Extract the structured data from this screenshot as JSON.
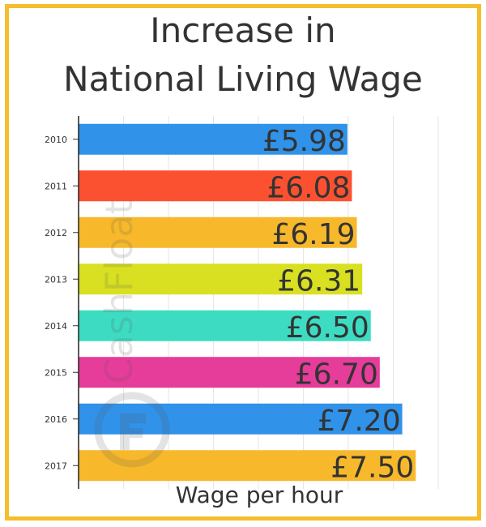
{
  "chart_data": {
    "type": "bar",
    "orientation": "horizontal",
    "title_lines": [
      "Increase in",
      "National Living Wage"
    ],
    "xlabel": "Wage per hour",
    "ylabel": "",
    "categories": [
      "2010",
      "2011",
      "2012",
      "2013",
      "2014",
      "2015",
      "2016",
      "2017"
    ],
    "values": [
      5.98,
      6.08,
      6.19,
      6.31,
      6.5,
      6.7,
      7.2,
      7.5
    ],
    "data_labels": [
      "£5.98",
      "£6.08",
      "£6.19",
      "£6.31",
      "£6.50",
      "£6.70",
      "£7.20",
      "£7.50"
    ],
    "bar_colors": [
      "#3092e8",
      "#fc5130",
      "#f7b92b",
      "#d8e021",
      "#3ddcc2",
      "#e63c9a",
      "#3092e8",
      "#f7b92b"
    ],
    "xlim": [
      0,
      8
    ],
    "x_ticks_labeled": false,
    "grid": "vertical",
    "legend": "none"
  },
  "watermark": {
    "brand": "CashFloat",
    "icon": "cashfloat-logo-icon"
  },
  "colors": {
    "frame": "#f4be2c",
    "text": "#333333"
  }
}
